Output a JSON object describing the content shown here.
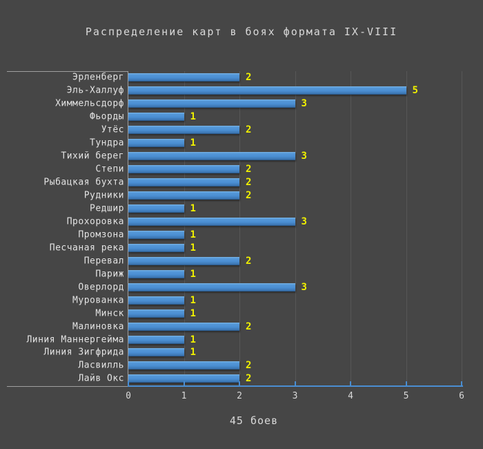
{
  "chart_data": {
    "type": "bar",
    "orientation": "horizontal",
    "title": "Распределение карт в боях формата IX-VIII",
    "caption": "45 боев",
    "categories": [
      "Эрленберг",
      "Эль-Халлуф",
      "Химмельсдорф",
      "Фьорды",
      "Утёс",
      "Тундра",
      "Тихий берег",
      "Степи",
      "Рыбацкая бухта",
      "Рудники",
      "Редшир",
      "Прохоровка",
      "Промзона",
      "Песчаная река",
      "Перевал",
      "Париж",
      "Оверлорд",
      "Мурованка",
      "Минск",
      "Малиновка",
      "Линия Маннергейма",
      "Линия Зигфрида",
      "Ласвилль",
      "Лайв Окс"
    ],
    "values": [
      2,
      5,
      3,
      1,
      2,
      1,
      3,
      2,
      2,
      2,
      1,
      3,
      1,
      1,
      2,
      1,
      3,
      1,
      1,
      2,
      1,
      1,
      2,
      2
    ],
    "total_battles": 45,
    "xlim": [
      0,
      6
    ],
    "xticks": [
      "0",
      "1",
      "2",
      "3",
      "4",
      "5",
      "6"
    ],
    "grid": "vertical",
    "legend": "none",
    "colors": {
      "background": "#464646",
      "bar_fill": "#4a8ed2",
      "bar_highlight": "#79b5e6",
      "bar_shadow_edge": "#2c5c8e",
      "value_label": "#f0f000",
      "category_label": "#e3e3e3",
      "title_text": "#d9d9d9",
      "axis_line": "#4a8ed2",
      "domain_line": "#9f9f9f",
      "gridline": "#575757"
    }
  }
}
